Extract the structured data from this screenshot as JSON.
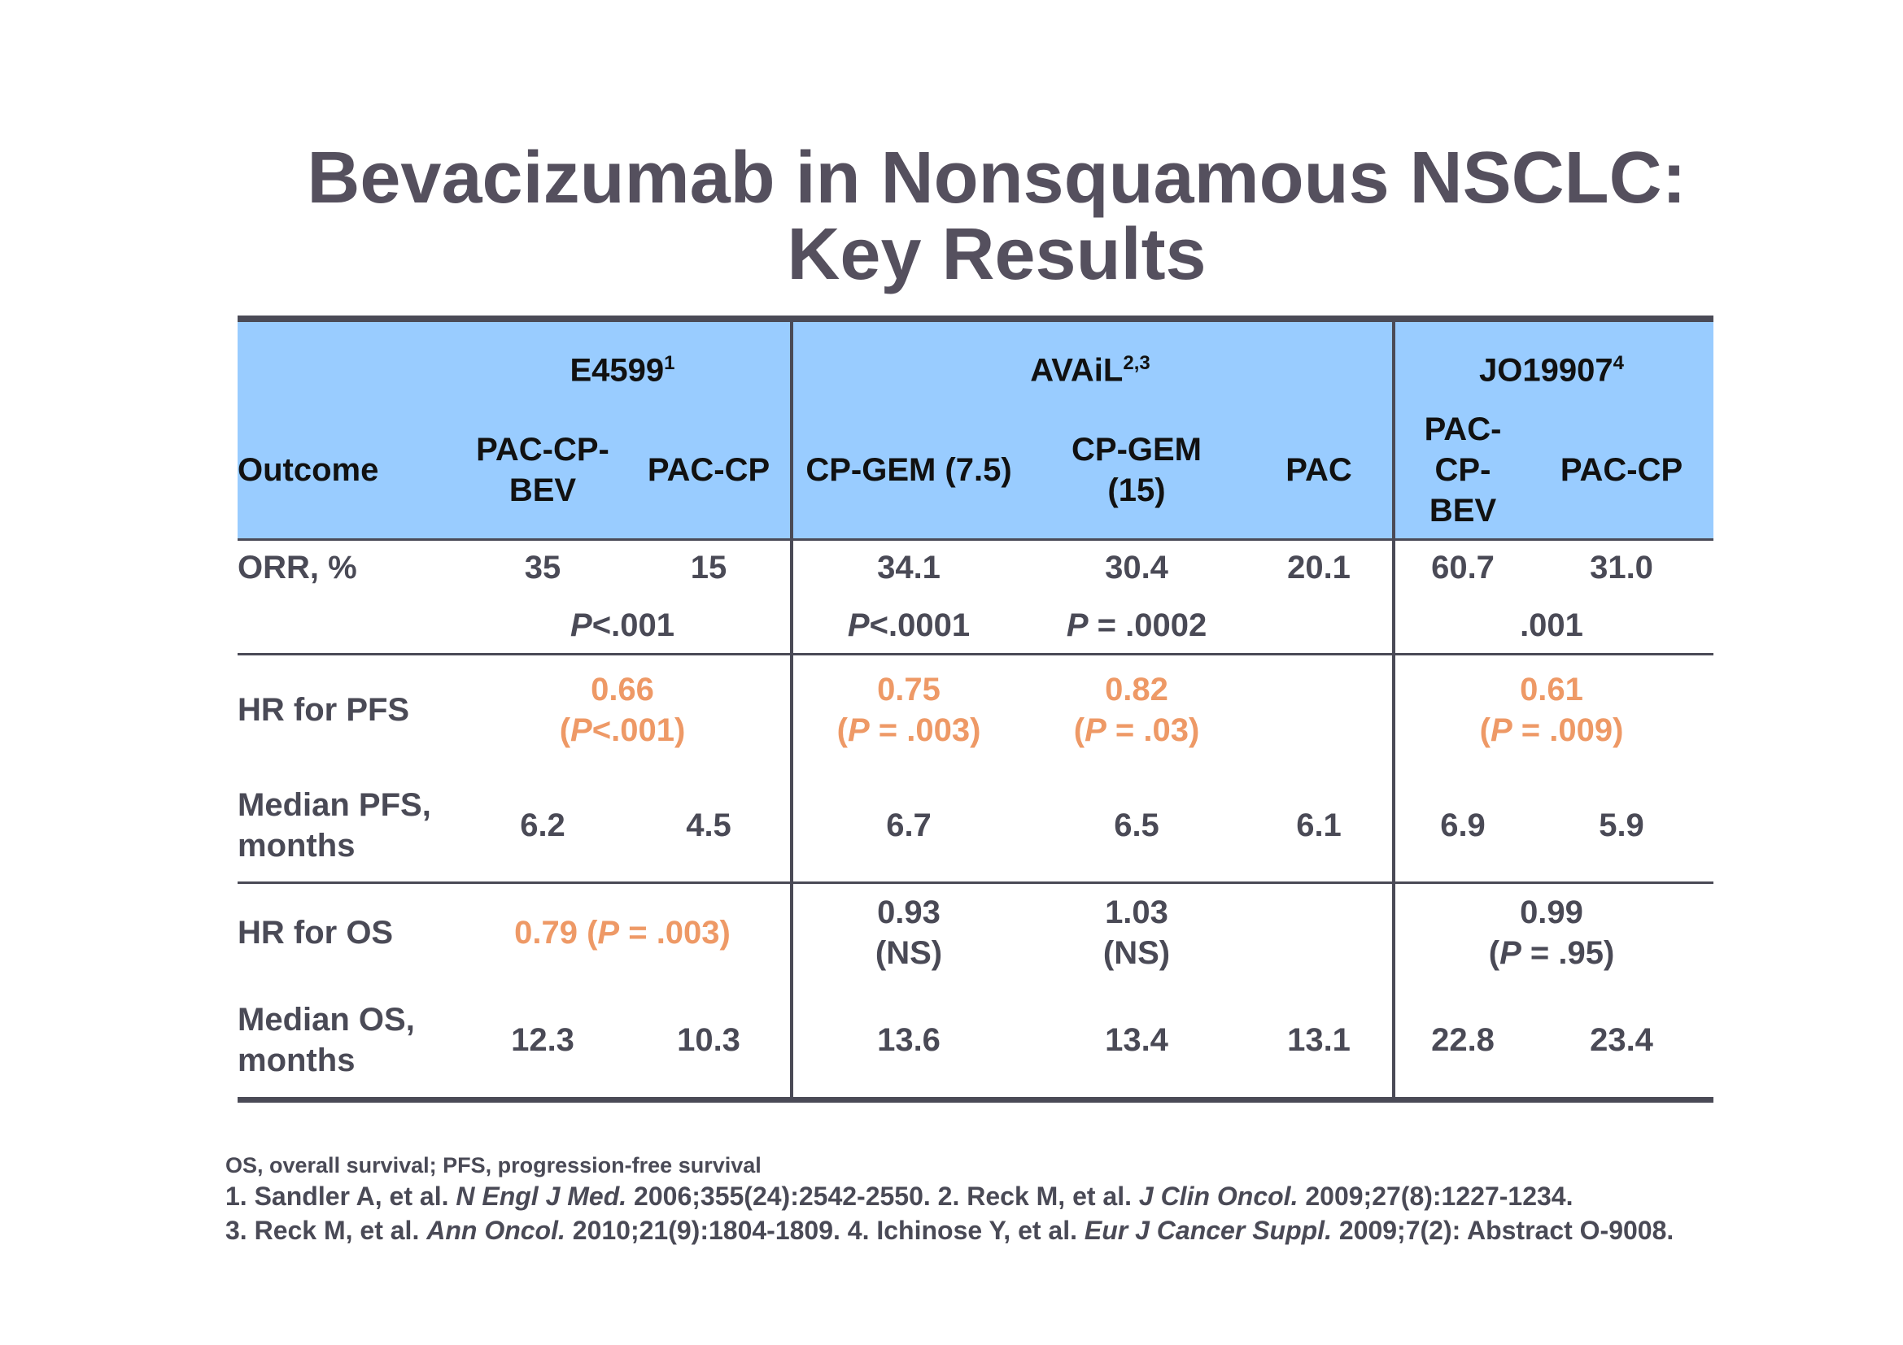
{
  "title": {
    "line1": "Bevacizumab in Nonsquamous NSCLC:",
    "line2": "Key Results"
  },
  "trials": [
    {
      "name": "E4599",
      "ref": "1"
    },
    {
      "name": "AVAiL",
      "ref": "2,3"
    },
    {
      "name": "JO19907",
      "ref": "4"
    }
  ],
  "columns": {
    "outcome": "Outcome",
    "e_bev": [
      "PAC-CP-",
      "BEV"
    ],
    "e_ctrl": "PAC-CP",
    "a_gem75": "CP-GEM (7.5)",
    "a_gem15": [
      "CP-GEM",
      "(15)"
    ],
    "a_pac": "PAC",
    "j_bev": [
      "PAC-",
      "CP-",
      "BEV"
    ],
    "j_ctrl": "PAC-CP"
  },
  "rows": {
    "orr": {
      "label": "ORR, %",
      "values": [
        "35",
        "15",
        "34.1",
        "30.4",
        "20.1",
        "60.7",
        "31.0"
      ],
      "p_e": {
        "p": "P",
        "rest": "<.001"
      },
      "p_a1": {
        "p": "P",
        "rest": "<.0001"
      },
      "p_a2": {
        "p": "P",
        "rest": " = .0002"
      },
      "p_j": ".001"
    },
    "hr_pfs": {
      "label": "HR for PFS",
      "e": {
        "hr": "0.66",
        "open": "(",
        "p": "P",
        "rest": "<.001)"
      },
      "a1": {
        "hr": "0.75",
        "open": "(",
        "p": "P",
        "rest": " = .003)"
      },
      "a2": {
        "hr": "0.82",
        "open": "(",
        "p": "P",
        "rest": " = .03)"
      },
      "j": {
        "hr": "0.61",
        "open": "(",
        "p": "P",
        "rest": " = .009)"
      }
    },
    "med_pfs": {
      "label": [
        "Median PFS,",
        "months"
      ],
      "values": [
        "6.2",
        "4.5",
        "6.7",
        "6.5",
        "6.1",
        "6.9",
        "5.9"
      ]
    },
    "hr_os": {
      "label": "HR for OS",
      "e": {
        "hr": "0.79 (",
        "p": "P",
        "rest": " = .003)"
      },
      "a1": [
        "0.93",
        "(NS)"
      ],
      "a2": [
        "1.03",
        "(NS)"
      ],
      "j": {
        "hr": "0.99",
        "open": "(",
        "p": "P",
        "rest": " = .95)"
      }
    },
    "med_os": {
      "label": [
        "Median OS,",
        "months"
      ],
      "values": [
        "12.3",
        "10.3",
        "13.6",
        "13.4",
        "13.1",
        "22.8",
        "23.4"
      ]
    }
  },
  "footnotes": {
    "abbrev": "OS, overall survival; PFS, progression-free survival",
    "ref1_a": "1. Sandler A, et al. ",
    "ref1_j": "N Engl J Med.",
    "ref1_b": " 2006;355(24):2542-2550. 2. Reck M, et al. ",
    "ref2_j": "J Clin Oncol.",
    "ref2_b": " 2009;27(8):1227-1234.",
    "ref3_a": "3. Reck M, et al. ",
    "ref3_j": "Ann Oncol.",
    "ref3_b": " 2010;21(9):1804-1809.  4. Ichinose Y, et al. ",
    "ref4_j": "Eur J Cancer Suppl.",
    "ref4_b": " 2009;7(2): Abstract O-9008."
  },
  "colors": {
    "header_bg": "#99ccff",
    "emphasis": "#ee9966",
    "text": "#4a4a56"
  }
}
